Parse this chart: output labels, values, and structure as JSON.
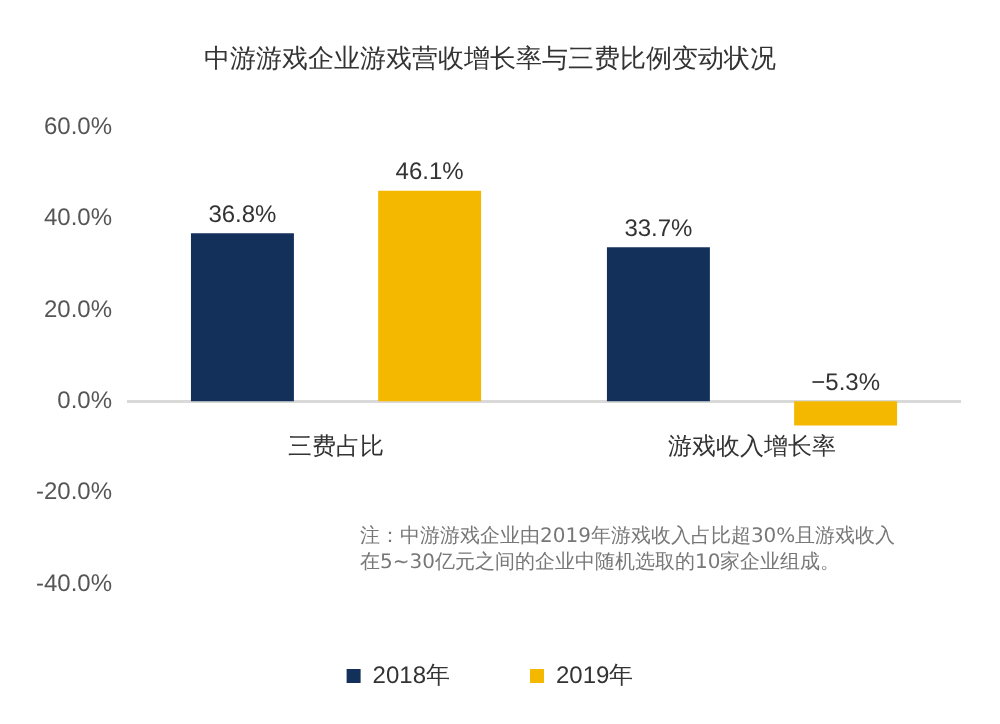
{
  "chart_data": {
    "type": "bar",
    "title": "中游游戏企业游戏营收增长率与三费比例变动状况",
    "categories": [
      "三费占比",
      "游戏收入增长率"
    ],
    "series": [
      {
        "name": "2018年",
        "color": "#12305a",
        "values": [
          36.8,
          33.7
        ],
        "value_labels": [
          "36.8%",
          "33.7%"
        ]
      },
      {
        "name": "2019年",
        "color": "#f5b800",
        "values": [
          46.1,
          -5.3
        ],
        "value_labels": [
          "46.1%",
          "−5.3%"
        ]
      }
    ],
    "ylim": [
      -40,
      60
    ],
    "yticks": [
      {
        "value": -40,
        "label": "-40.0%"
      },
      {
        "value": -20,
        "label": "-20.0%"
      },
      {
        "value": 0,
        "label": "0.0%"
      },
      {
        "value": 20,
        "label": "20.0%"
      },
      {
        "value": 40,
        "label": "40.0%"
      },
      {
        "value": 60,
        "label": "60.0%"
      }
    ],
    "grid": false,
    "legend": "bottom",
    "annotations": [
      "注：中游游戏企业由2019年游戏收入占比超30%且游戏收入在5~30亿元之间的企业中随机选取的10家企业组成。"
    ]
  }
}
